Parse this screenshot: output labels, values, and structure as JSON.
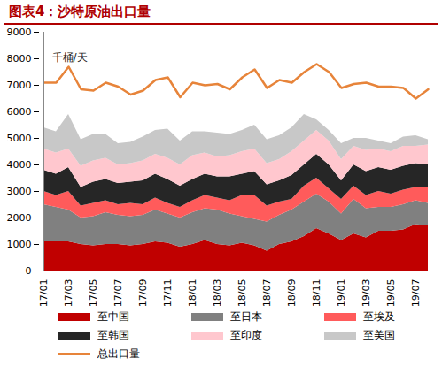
{
  "chart_data": {
    "type": "area",
    "title": "图表4：沙特原油出口量",
    "ylabel": "千桶/天",
    "stacked": true,
    "legend": "bottom",
    "grid": false,
    "categories": [
      "17/01",
      null,
      "17/03",
      null,
      "17/05",
      null,
      "17/07",
      null,
      "17/09",
      null,
      "17/11",
      null,
      "18/01",
      null,
      "18/03",
      null,
      "18/05",
      null,
      "18/07",
      null,
      "18/09",
      null,
      "18/11",
      null,
      "19/01",
      null,
      "19/03",
      null,
      "19/05",
      null,
      "19/07",
      null
    ],
    "ylim": [
      0,
      9000
    ],
    "yticks": [
      0,
      1000,
      2000,
      3000,
      4000,
      5000,
      6000,
      7000,
      8000,
      9000
    ],
    "series": [
      {
        "name": "至中国",
        "type": "area",
        "color": "#c00000",
        "values": [
          1100,
          1100,
          1100,
          1000,
          950,
          1000,
          1000,
          950,
          1000,
          1100,
          1050,
          900,
          1000,
          1150,
          1000,
          950,
          1050,
          950,
          750,
          1000,
          1100,
          1300,
          1600,
          1400,
          1150,
          1400,
          1250,
          1500,
          1500,
          1550,
          1750,
          1700
        ]
      },
      {
        "name": "至日本",
        "type": "area",
        "color": "#808080",
        "values": [
          1400,
          1300,
          1200,
          1000,
          1100,
          1200,
          1100,
          1100,
          1100,
          1200,
          1100,
          1100,
          1200,
          1200,
          1300,
          1200,
          1000,
          1000,
          1100,
          1100,
          1200,
          1300,
          1300,
          1200,
          1000,
          1300,
          1100,
          900,
          900,
          950,
          900,
          850
        ]
      },
      {
        "name": "至埃及",
        "type": "area",
        "color": "#ff5b5b",
        "values": [
          500,
          450,
          700,
          450,
          500,
          450,
          400,
          500,
          400,
          450,
          400,
          400,
          450,
          500,
          450,
          500,
          800,
          900,
          600,
          500,
          400,
          600,
          600,
          500,
          550,
          500,
          500,
          600,
          500,
          550,
          500,
          600
        ]
      },
      {
        "name": "至韩国",
        "type": "area",
        "color": "#262626",
        "values": [
          800,
          800,
          900,
          700,
          800,
          800,
          800,
          800,
          900,
          900,
          900,
          800,
          800,
          800,
          800,
          900,
          800,
          900,
          800,
          800,
          900,
          800,
          900,
          900,
          700,
          800,
          900,
          900,
          900,
          900,
          900,
          850
        ]
      },
      {
        "name": "至印度",
        "type": "area",
        "color": "#ffc7ce",
        "values": [
          800,
          800,
          700,
          800,
          800,
          800,
          700,
          700,
          750,
          750,
          800,
          800,
          900,
          800,
          750,
          800,
          850,
          850,
          800,
          800,
          900,
          900,
          900,
          900,
          800,
          700,
          800,
          700,
          700,
          750,
          650,
          750
        ]
      },
      {
        "name": "至美国",
        "type": "area",
        "color": "#c8c8c8",
        "values": [
          800,
          800,
          1300,
          1000,
          1000,
          900,
          800,
          800,
          900,
          900,
          1100,
          900,
          900,
          800,
          900,
          800,
          800,
          900,
          900,
          900,
          900,
          1000,
          400,
          400,
          600,
          300,
          450,
          300,
          300,
          350,
          400,
          200
        ]
      },
      {
        "name": "总出口量",
        "type": "line",
        "color": "#e7843a",
        "values": [
          7100,
          7100,
          7700,
          6850,
          6800,
          7100,
          6950,
          6650,
          6800,
          7200,
          7300,
          6550,
          7100,
          7000,
          7050,
          6850,
          7300,
          7600,
          6900,
          7200,
          7100,
          7500,
          7800,
          7500,
          6900,
          7050,
          7100,
          6950,
          6950,
          6900,
          6500,
          6850
        ]
      }
    ]
  }
}
